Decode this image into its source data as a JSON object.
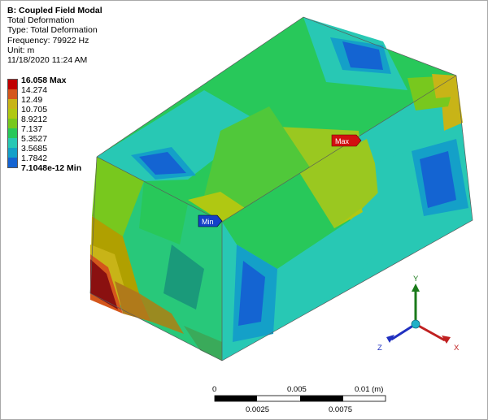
{
  "header": {
    "title": "B: Coupled Field Modal",
    "line1": "Total Deformation",
    "line2": "Type: Total Deformation",
    "line3": "Frequency: 79922 Hz",
    "line4": "Unit: m",
    "line5": "11/18/2020 11:24 AM"
  },
  "legend": {
    "labels": [
      "16.058 Max",
      "14.274",
      "12.49",
      "10.705",
      "8.9212",
      "7.137",
      "5.3527",
      "3.5685",
      "1.7842",
      "7.1048e-12 Min"
    ],
    "colors": [
      "#c00000",
      "#d4571c",
      "#c8b417",
      "#b0c812",
      "#78c81e",
      "#28c85a",
      "#28c8b4",
      "#14a0c8",
      "#1464d2",
      "#0a14c8"
    ]
  },
  "probes": {
    "max_label": "Max",
    "min_label": "Min"
  },
  "scale": {
    "top_labels": [
      "0",
      "0.005",
      "0.01 (m)"
    ],
    "bottom_labels": [
      "0.0025",
      "0.0075"
    ]
  },
  "triad": {
    "x": "X",
    "y": "Y",
    "z": "Z"
  }
}
